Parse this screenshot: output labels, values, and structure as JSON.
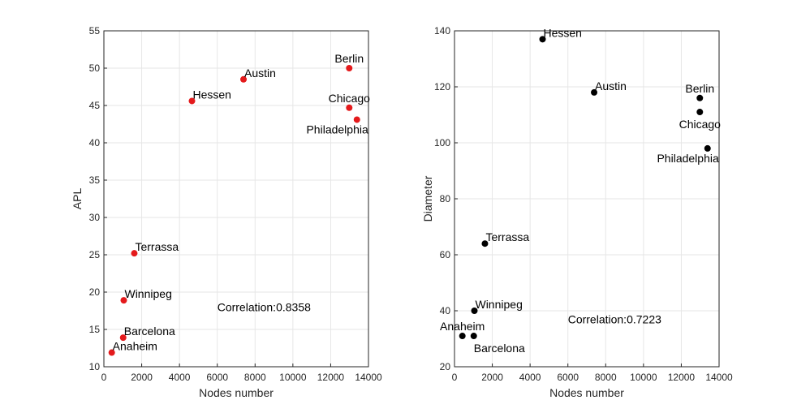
{
  "chart_data": [
    {
      "type": "scatter",
      "xlabel": "Nodes number",
      "ylabel": "APL",
      "xlim": [
        0,
        14000
      ],
      "ylim": [
        10,
        55
      ],
      "xticks": [
        "0",
        "2000",
        "4000",
        "6000",
        "8000",
        "10000",
        "12000",
        "14000"
      ],
      "yticks": [
        "10",
        "15",
        "20",
        "25",
        "30",
        "35",
        "40",
        "45",
        "50",
        "55"
      ],
      "grid": true,
      "marker_color": "#e41a1c",
      "annotation": "Correlation:0.8358",
      "annotation_pos": [
        6000,
        18
      ],
      "points": [
        {
          "label": "Anaheim",
          "x": 416,
          "y": 11.9,
          "anchor": "right-up"
        },
        {
          "label": "Barcelona",
          "x": 1020,
          "y": 13.9,
          "anchor": "right-up"
        },
        {
          "label": "Winnipeg",
          "x": 1052,
          "y": 18.9,
          "anchor": "right-up"
        },
        {
          "label": "Terrassa",
          "x": 1609,
          "y": 25.2,
          "anchor": "right-up"
        },
        {
          "label": "Hessen",
          "x": 4660,
          "y": 45.6,
          "anchor": "right-up"
        },
        {
          "label": "Austin",
          "x": 7388,
          "y": 48.5,
          "anchor": "right-up"
        },
        {
          "label": "Berlin",
          "x": 12981,
          "y": 50.0,
          "anchor": "above"
        },
        {
          "label": "Chicago",
          "x": 12982,
          "y": 44.7,
          "anchor": "above"
        },
        {
          "label": "Philadelphia",
          "x": 13389,
          "y": 43.1,
          "anchor": "below-left"
        }
      ]
    },
    {
      "type": "scatter",
      "xlabel": "Nodes number",
      "ylabel": "Diameter",
      "xlim": [
        0,
        14000
      ],
      "ylim": [
        20,
        140
      ],
      "xticks": [
        "0",
        "2000",
        "4000",
        "6000",
        "8000",
        "10000",
        "12000",
        "14000"
      ],
      "yticks": [
        "20",
        "40",
        "60",
        "80",
        "100",
        "120",
        "140"
      ],
      "grid": true,
      "marker_color": "#000000",
      "annotation": "Correlation:0.7223",
      "annotation_pos": [
        6000,
        37
      ],
      "points": [
        {
          "label": "Anaheim",
          "x": 416,
          "y": 31,
          "anchor": "above"
        },
        {
          "label": "Barcelona",
          "x": 1020,
          "y": 31,
          "anchor": "below-right"
        },
        {
          "label": "Winnipeg",
          "x": 1052,
          "y": 40,
          "anchor": "right-up"
        },
        {
          "label": "Terrassa",
          "x": 1609,
          "y": 64,
          "anchor": "right-up"
        },
        {
          "label": "Hessen",
          "x": 4660,
          "y": 137,
          "anchor": "right-up"
        },
        {
          "label": "Austin",
          "x": 7388,
          "y": 118,
          "anchor": "right-up"
        },
        {
          "label": "Berlin",
          "x": 12981,
          "y": 116,
          "anchor": "above"
        },
        {
          "label": "Chicago",
          "x": 12982,
          "y": 111,
          "anchor": "below"
        },
        {
          "label": "Philadelphia",
          "x": 13389,
          "y": 98,
          "anchor": "below-left"
        }
      ]
    }
  ]
}
